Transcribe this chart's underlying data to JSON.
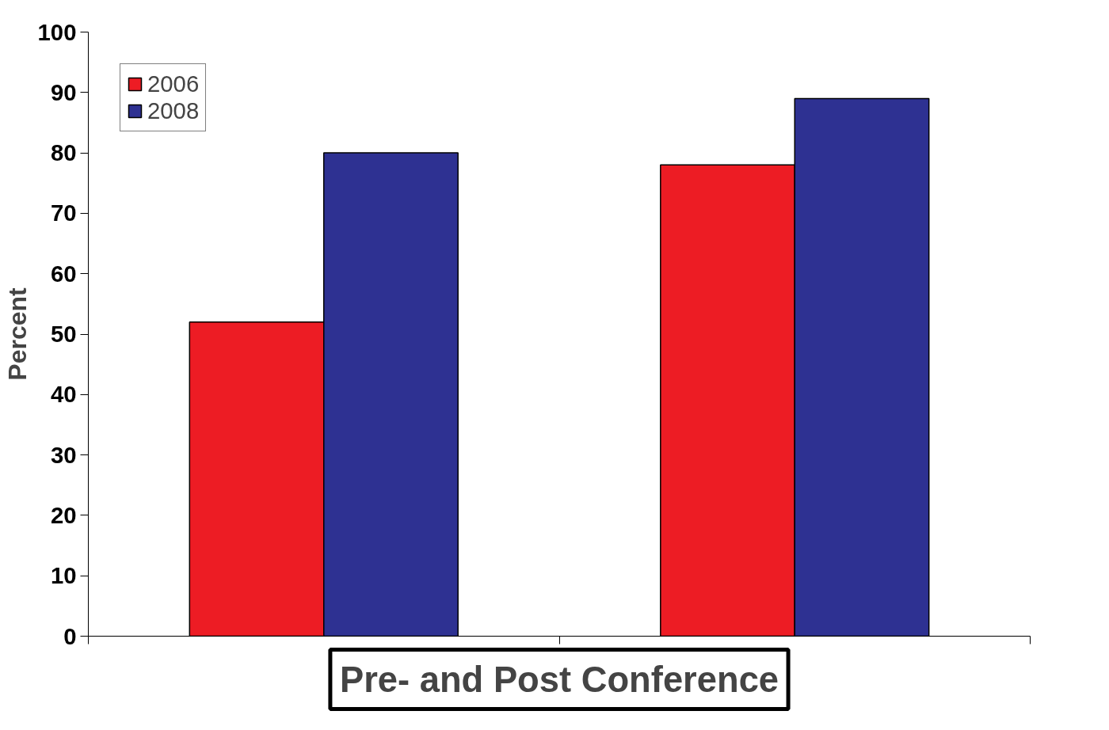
{
  "chart_data": {
    "type": "bar",
    "xlabel": "Pre- and Post Conference",
    "ylabel": "Percent",
    "categories": [
      null,
      null
    ],
    "series": [
      {
        "name": "2006",
        "color": "#ed1c24",
        "values": [
          52,
          78
        ]
      },
      {
        "name": "2008",
        "color": "#2e3192",
        "values": [
          80,
          89
        ]
      }
    ],
    "ylim": [
      0,
      100
    ],
    "yticks": [
      0,
      10,
      20,
      30,
      40,
      50,
      60,
      70,
      80,
      90,
      100
    ],
    "grid": false,
    "legend": "top left"
  }
}
